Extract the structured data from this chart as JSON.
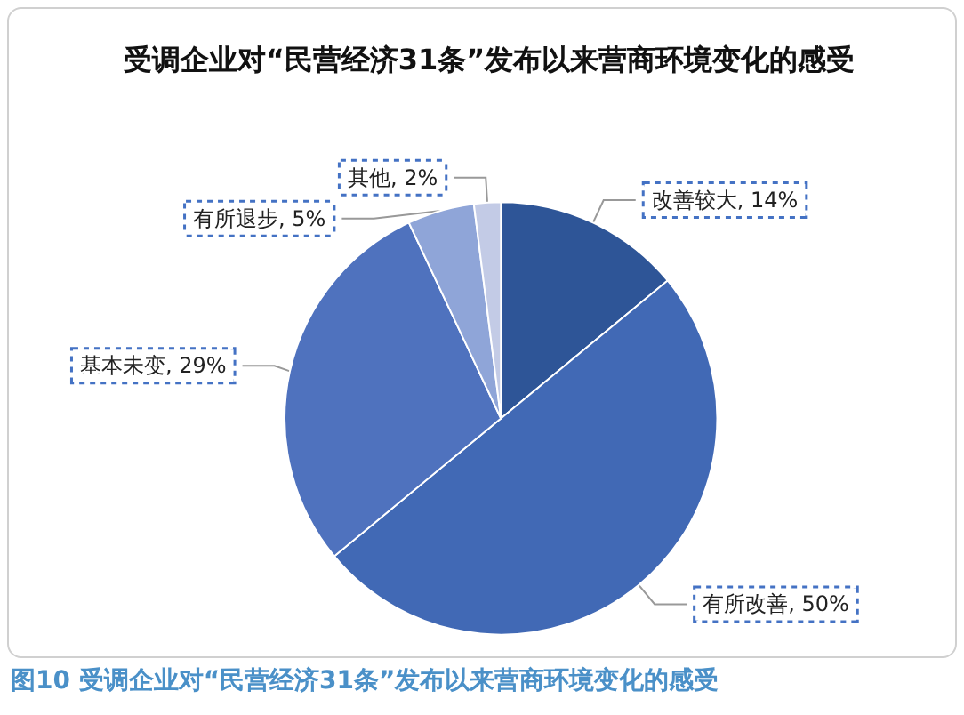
{
  "chart_data": {
    "type": "pie",
    "title": "受调企业对“民营经济31条”发布以来营商环境变化的感受",
    "categories": [
      "改善较大",
      "有所改善",
      "基本未变",
      "有所退步",
      "其他"
    ],
    "values": [
      14,
      50,
      29,
      5,
      2
    ],
    "value_labels": [
      "14%",
      "50%",
      "29%",
      "5%",
      "2%"
    ],
    "colors": [
      "#2e5597",
      "#4169b5",
      "#4f72be",
      "#8fa5d8",
      "#c3cbe6"
    ],
    "legend": false,
    "annotations": [
      "图10  受调企业对“民营经济31条”发布以来营商环境变化的感受"
    ]
  }
}
